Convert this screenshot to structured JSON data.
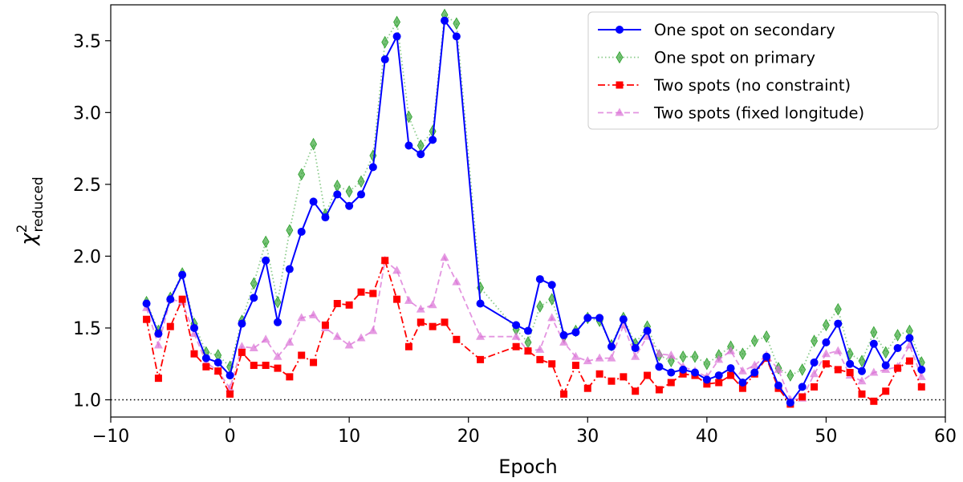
{
  "chart_data": {
    "type": "line",
    "title": "",
    "xlabel": "Epoch",
    "ylabel_main": "χ",
    "ylabel_sup": "2",
    "ylabel_sub": "reduced",
    "xlim": [
      -10,
      60
    ],
    "ylim": [
      0.88,
      3.75
    ],
    "xticks": [
      -10,
      0,
      10,
      20,
      30,
      40,
      50,
      60
    ],
    "xtick_labels": [
      "−10",
      "0",
      "10",
      "20",
      "30",
      "40",
      "50",
      "60"
    ],
    "yticks": [
      1.0,
      1.5,
      2.0,
      2.5,
      3.0,
      3.5
    ],
    "ytick_labels": [
      "1.0",
      "1.5",
      "2.0",
      "2.5",
      "3.0",
      "3.5"
    ],
    "reference_line": {
      "y": 1.0,
      "style": "dotted",
      "color": "#000000"
    },
    "legend_position": "top-right",
    "series": [
      {
        "name": "One spot on secondary",
        "color": "#0000ff",
        "line": "solid",
        "marker": "circle",
        "x": [
          -7,
          -6,
          -5,
          -4,
          -3,
          -2,
          -1,
          0,
          1,
          2,
          3,
          4,
          5,
          6,
          7,
          8,
          9,
          10,
          11,
          12,
          13,
          14,
          15,
          16,
          17,
          18,
          19,
          21,
          24,
          25,
          26,
          27,
          28,
          29,
          30,
          31,
          32,
          33,
          34,
          35,
          36,
          37,
          38,
          39,
          40,
          41,
          42,
          43,
          44,
          45,
          46,
          47,
          48,
          49,
          50,
          51,
          52,
          53,
          54,
          55,
          56,
          57,
          58
        ],
        "y": [
          1.67,
          1.46,
          1.7,
          1.87,
          1.5,
          1.29,
          1.26,
          1.17,
          1.53,
          1.71,
          1.97,
          1.54,
          1.91,
          2.17,
          2.38,
          2.27,
          2.43,
          2.35,
          2.43,
          2.62,
          3.37,
          3.53,
          2.77,
          2.71,
          2.81,
          3.64,
          3.53,
          1.67,
          1.52,
          1.48,
          1.84,
          1.8,
          1.45,
          1.47,
          1.57,
          1.57,
          1.37,
          1.56,
          1.36,
          1.48,
          1.23,
          1.19,
          1.21,
          1.19,
          1.14,
          1.17,
          1.22,
          1.12,
          1.19,
          1.3,
          1.1,
          0.98,
          1.09,
          1.26,
          1.4,
          1.53,
          1.25,
          1.2,
          1.39,
          1.24,
          1.36,
          1.43,
          1.21
        ]
      },
      {
        "name": "One spot on primary",
        "color": "#2ca02c",
        "line": "dotted",
        "marker": "thin_diamond",
        "x": [
          -7,
          -6,
          -5,
          -4,
          -3,
          -2,
          -1,
          0,
          1,
          2,
          3,
          4,
          5,
          6,
          7,
          8,
          9,
          10,
          11,
          12,
          13,
          14,
          15,
          16,
          17,
          18,
          19,
          21,
          24,
          25,
          26,
          27,
          28,
          29,
          30,
          31,
          32,
          33,
          34,
          35,
          36,
          37,
          38,
          39,
          40,
          41,
          42,
          43,
          44,
          45,
          46,
          47,
          48,
          49,
          50,
          51,
          52,
          53,
          54,
          55,
          56,
          57,
          58
        ],
        "y": [
          1.68,
          1.48,
          1.71,
          1.88,
          1.53,
          1.33,
          1.31,
          1.23,
          1.55,
          1.81,
          2.1,
          1.68,
          2.18,
          2.57,
          2.78,
          2.29,
          2.49,
          2.45,
          2.52,
          2.7,
          3.49,
          3.63,
          2.97,
          2.77,
          2.87,
          3.68,
          3.62,
          1.78,
          1.49,
          1.4,
          1.65,
          1.7,
          1.44,
          1.48,
          1.57,
          1.55,
          1.38,
          1.57,
          1.39,
          1.51,
          1.31,
          1.27,
          1.3,
          1.3,
          1.25,
          1.31,
          1.37,
          1.32,
          1.41,
          1.44,
          1.22,
          1.17,
          1.21,
          1.41,
          1.52,
          1.63,
          1.32,
          1.27,
          1.47,
          1.33,
          1.45,
          1.48,
          1.26
        ]
      },
      {
        "name": "Two spots (no constraint)",
        "color": "#ff0000",
        "line": "dashdot",
        "marker": "square",
        "x": [
          -7,
          -6,
          -5,
          -4,
          -3,
          -2,
          -1,
          0,
          1,
          2,
          3,
          4,
          5,
          6,
          7,
          8,
          9,
          10,
          11,
          12,
          13,
          14,
          15,
          16,
          17,
          18,
          19,
          21,
          24,
          25,
          26,
          27,
          28,
          29,
          30,
          31,
          32,
          33,
          34,
          35,
          36,
          37,
          38,
          39,
          40,
          41,
          42,
          43,
          44,
          45,
          46,
          47,
          48,
          49,
          50,
          51,
          52,
          53,
          54,
          55,
          56,
          57,
          58
        ],
        "y": [
          1.56,
          1.15,
          1.51,
          1.7,
          1.32,
          1.23,
          1.2,
          1.04,
          1.33,
          1.24,
          1.24,
          1.22,
          1.16,
          1.31,
          1.26,
          1.52,
          1.67,
          1.66,
          1.75,
          1.74,
          1.97,
          1.7,
          1.37,
          1.54,
          1.51,
          1.54,
          1.42,
          1.28,
          1.37,
          1.34,
          1.28,
          1.25,
          1.04,
          1.24,
          1.08,
          1.18,
          1.13,
          1.16,
          1.06,
          1.17,
          1.07,
          1.12,
          1.18,
          1.17,
          1.11,
          1.12,
          1.17,
          1.08,
          1.18,
          1.29,
          1.08,
          0.97,
          1.02,
          1.09,
          1.25,
          1.21,
          1.19,
          1.04,
          0.99,
          1.06,
          1.22,
          1.27,
          1.09
        ]
      },
      {
        "name": "Two spots (fixed longitude)",
        "color": "#da70d6",
        "line": "dashed",
        "marker": "triangle",
        "x": [
          -7,
          -6,
          -5,
          -4,
          -3,
          -2,
          -1,
          0,
          1,
          2,
          3,
          4,
          5,
          6,
          7,
          8,
          9,
          10,
          11,
          12,
          13,
          14,
          15,
          16,
          17,
          18,
          19,
          21,
          24,
          25,
          26,
          27,
          28,
          29,
          30,
          31,
          32,
          33,
          34,
          35,
          36,
          37,
          38,
          39,
          40,
          41,
          42,
          43,
          44,
          45,
          46,
          47,
          48,
          49,
          50,
          51,
          52,
          53,
          54,
          55,
          56,
          57,
          58
        ],
        "y": [
          1.64,
          1.38,
          1.7,
          1.68,
          1.46,
          1.26,
          1.2,
          1.08,
          1.37,
          1.36,
          1.42,
          1.3,
          1.4,
          1.57,
          1.59,
          1.5,
          1.44,
          1.38,
          1.43,
          1.48,
          1.97,
          1.9,
          1.69,
          1.63,
          1.66,
          1.99,
          1.82,
          1.44,
          1.44,
          1.34,
          1.35,
          1.57,
          1.4,
          1.3,
          1.27,
          1.29,
          1.29,
          1.52,
          1.3,
          1.44,
          1.32,
          1.31,
          1.23,
          1.2,
          1.16,
          1.28,
          1.34,
          1.2,
          1.24,
          1.31,
          1.21,
          1.0,
          1.01,
          1.18,
          1.32,
          1.34,
          1.17,
          1.13,
          1.19,
          1.21,
          1.23,
          1.38,
          1.16
        ]
      }
    ]
  }
}
